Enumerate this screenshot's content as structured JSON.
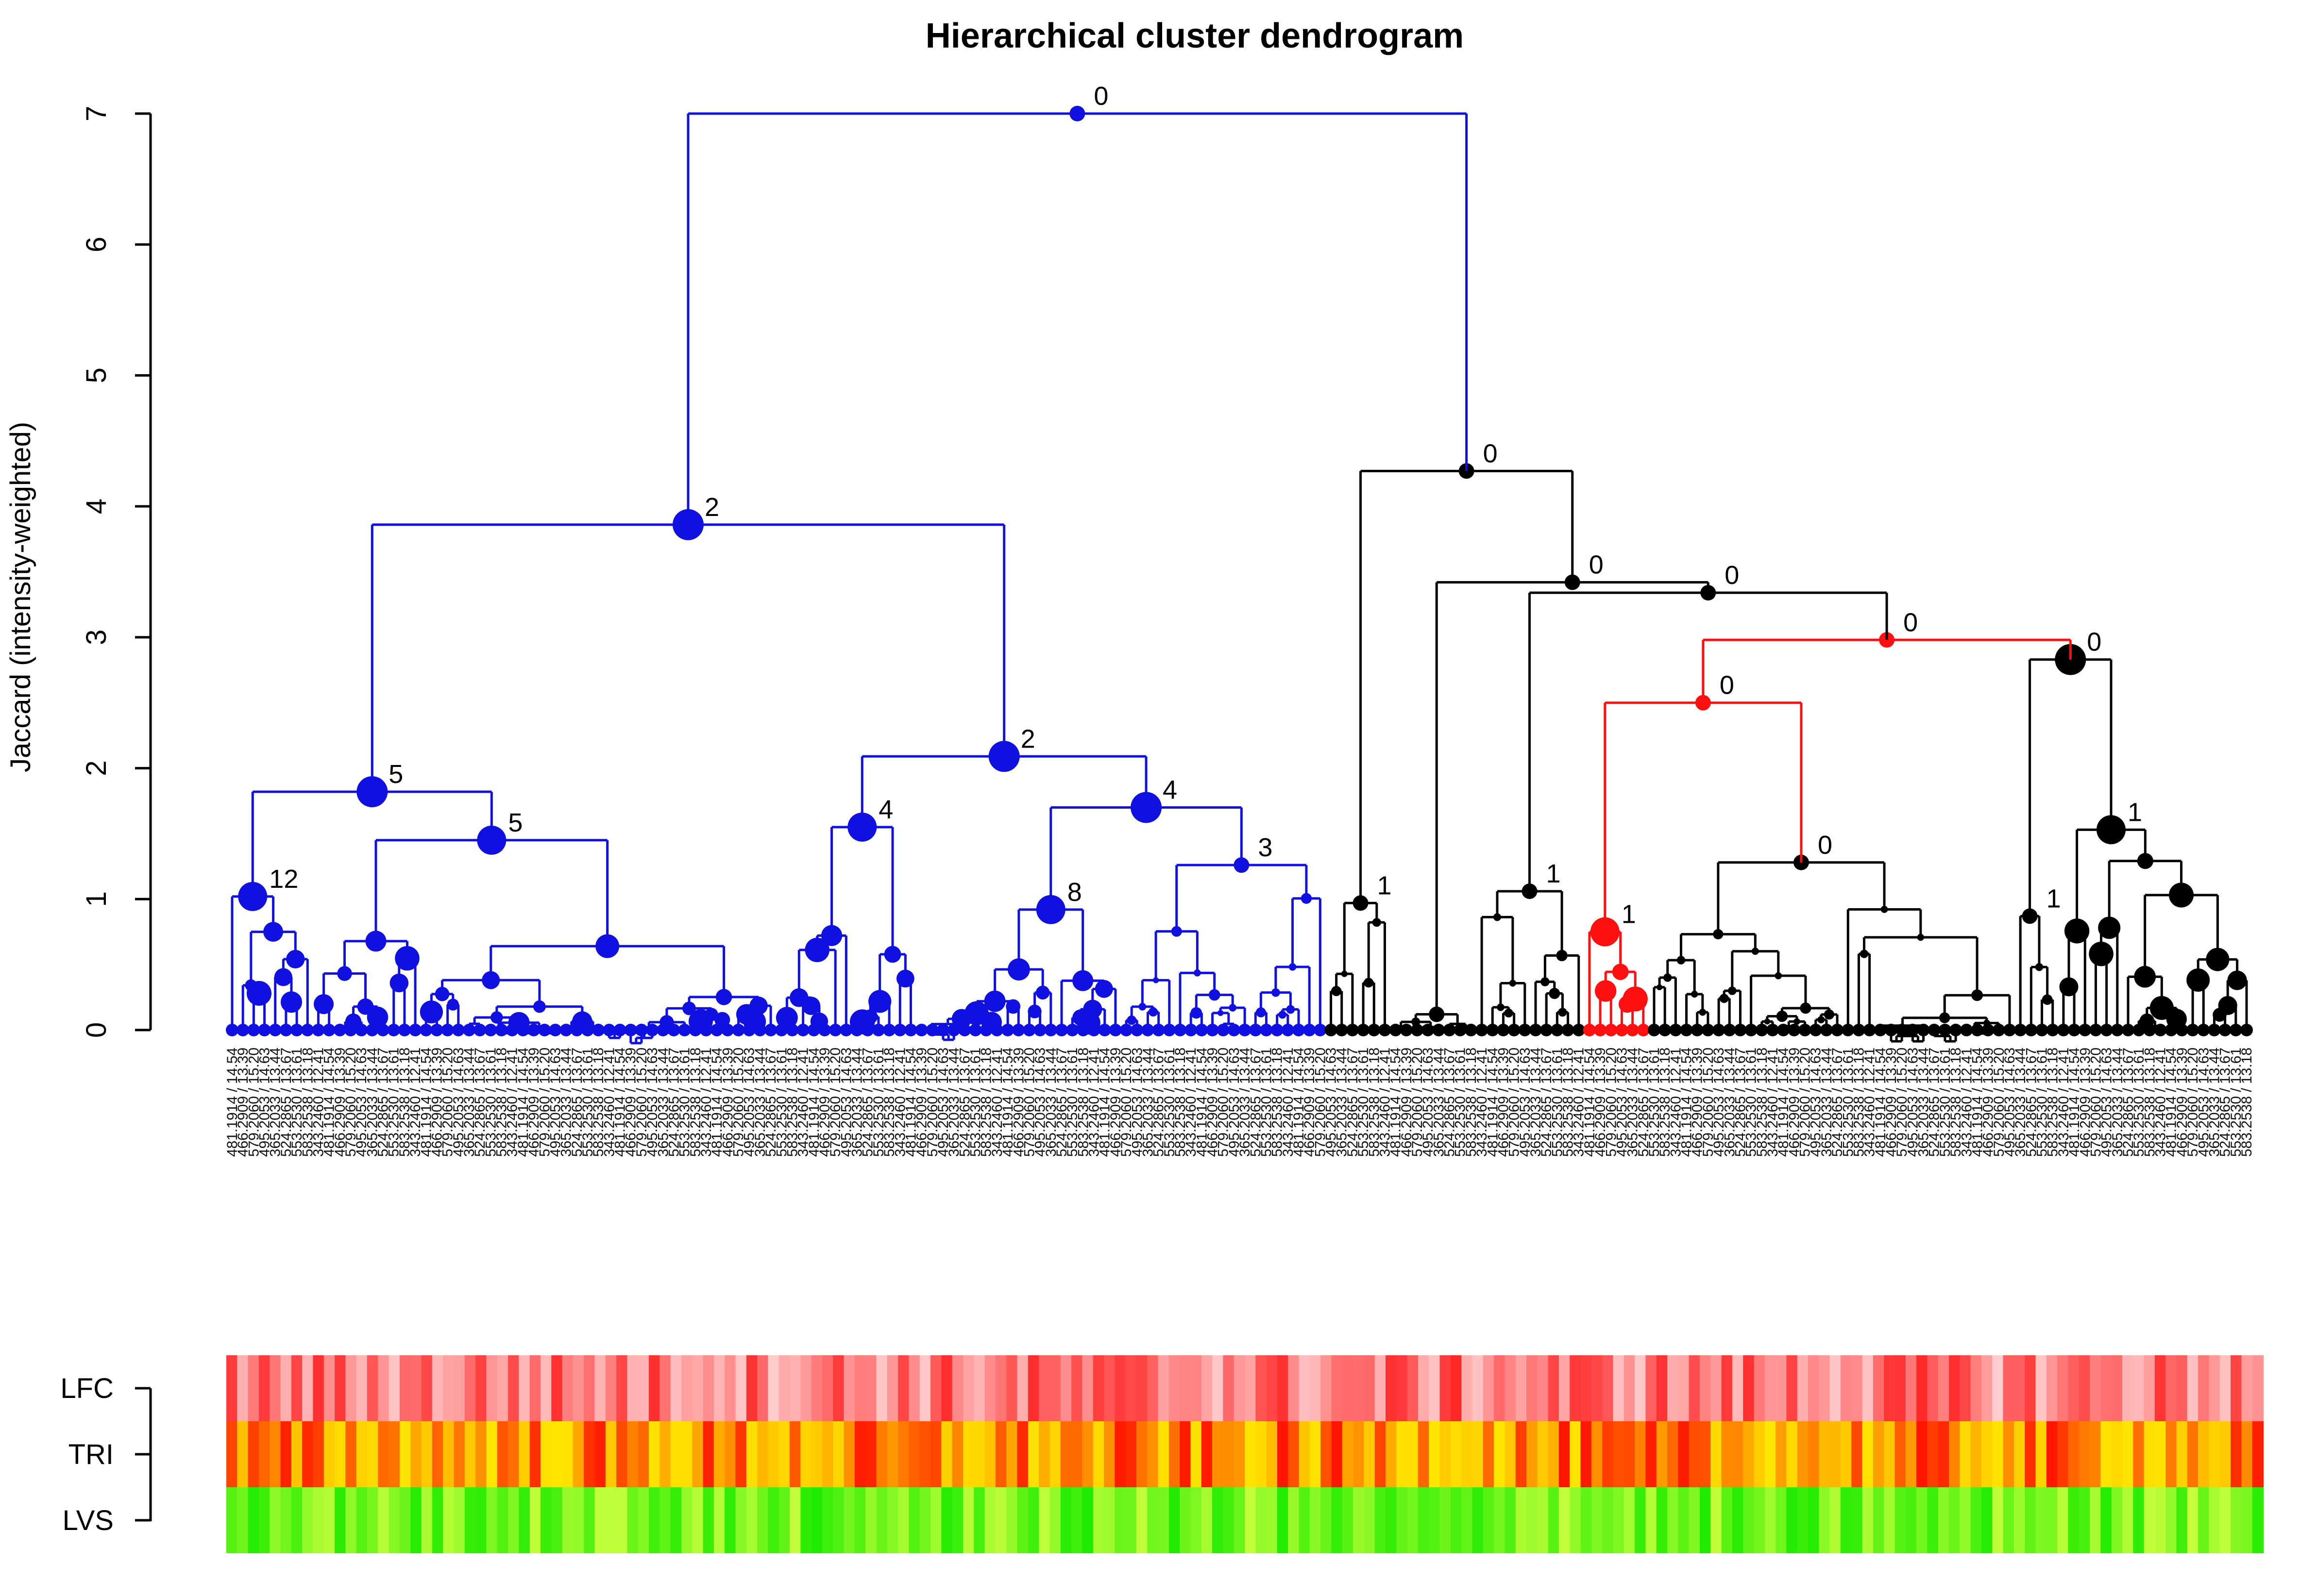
{
  "chart_data": {
    "type": "dendrogram",
    "title": "Hierarchical cluster dendrogram",
    "ylabel": "Jaccard (intensity-weighted)",
    "xlabel": "",
    "ylim": [
      0,
      7
    ],
    "yticks": [
      0,
      1,
      2,
      3,
      4,
      5,
      6,
      7
    ],
    "grid": false,
    "colors": {
      "blue_cluster": "#1010e0",
      "black_cluster": "#000000",
      "red_cluster": "#ff1010"
    },
    "n_leaves": 188,
    "cluster_ranges": [
      {
        "color": "#1010e0",
        "first_leaf": 0,
        "last_leaf": 101
      },
      {
        "color": "#000000",
        "first_leaf": 102,
        "last_leaf": 125
      },
      {
        "color": "#ff1010",
        "first_leaf": 126,
        "last_leaf": 131
      },
      {
        "color": "#000000",
        "first_leaf": 132,
        "last_leaf": 187
      }
    ],
    "major_nodes": [
      {
        "id": "root",
        "height": 7.0,
        "left": "A",
        "right": "B",
        "label": "0",
        "size": "small"
      },
      {
        "id": "A",
        "height": 3.86,
        "left": "A1",
        "right": "A2",
        "label": "2",
        "size": "large"
      },
      {
        "id": "A1",
        "height": 1.82,
        "left": "A1a",
        "right": "A1b",
        "label": "5",
        "size": "large"
      },
      {
        "id": "A1a",
        "height": 1.02,
        "first_leaf": 0,
        "last_leaf": 7,
        "label": "12",
        "size": "large"
      },
      {
        "id": "A1b",
        "height": 1.45,
        "first_leaf": 8,
        "last_leaf": 50,
        "label": "5",
        "size": "large"
      },
      {
        "id": "A2",
        "height": 2.09,
        "left": "A2a",
        "right": "A2b",
        "label": "2",
        "size": "large"
      },
      {
        "id": "A2a",
        "height": 1.55,
        "first_leaf": 51,
        "last_leaf": 63,
        "label": "4",
        "size": "large"
      },
      {
        "id": "A2b",
        "height": 1.7,
        "left": "A2b1",
        "right": "A2b2",
        "label": "4",
        "size": "large"
      },
      {
        "id": "A2b1",
        "height": 0.92,
        "first_leaf": 64,
        "last_leaf": 82,
        "label": "8",
        "size": "large"
      },
      {
        "id": "A2b2",
        "height": 1.26,
        "first_leaf": 83,
        "last_leaf": 101,
        "label": "3",
        "size": "small"
      },
      {
        "id": "B",
        "height": 4.27,
        "left": "B1",
        "right": "B2",
        "label": "0",
        "size": "small"
      },
      {
        "id": "B1",
        "height": 0.97,
        "first_leaf": 102,
        "last_leaf": 107,
        "label": "1",
        "size": "small"
      },
      {
        "id": "B2",
        "height": 3.42,
        "left": "B2a",
        "right": "B3",
        "label": "0",
        "size": "small"
      },
      {
        "id": "B2a",
        "height": 0.12,
        "first_leaf": 108,
        "last_leaf": 115,
        "label": "",
        "size": "small"
      },
      {
        "id": "B3",
        "height": 3.34,
        "left": "B3a",
        "right": "B4",
        "label": "0",
        "size": "small"
      },
      {
        "id": "B3a",
        "height": 1.06,
        "first_leaf": 116,
        "last_leaf": 125,
        "label": "1",
        "size": "small"
      },
      {
        "id": "B4",
        "height": 2.98,
        "left": "B5",
        "right": "B6",
        "label": "0",
        "size": "small"
      },
      {
        "id": "B5",
        "height": 2.5,
        "left": "B5a",
        "right": "B5b",
        "label": "0",
        "size": "small"
      },
      {
        "id": "B5a",
        "height": 0.75,
        "first_leaf": 126,
        "last_leaf": 131,
        "label": "1",
        "size": "large",
        "color": "#ff1010"
      },
      {
        "id": "B5b",
        "height": 1.28,
        "first_leaf": 132,
        "last_leaf": 165,
        "label": "0",
        "size": "small"
      },
      {
        "id": "B6",
        "height": 2.83,
        "left": "B6a",
        "right": "B6b",
        "label": "0",
        "size": "large"
      },
      {
        "id": "B6a",
        "height": 0.87,
        "first_leaf": 166,
        "last_leaf": 169,
        "label": "1",
        "size": "small"
      },
      {
        "id": "B6b",
        "height": 1.53,
        "first_leaf": 170,
        "last_leaf": 187,
        "label": "1",
        "size": "large"
      }
    ],
    "annotation_rows": [
      {
        "name": "LFC",
        "palette": "red"
      },
      {
        "name": "TRI",
        "palette": "yellow-red"
      },
      {
        "name": "LVS",
        "palette": "green"
      }
    ],
    "leaf_labels_sample": [
      "481.1914 / 14.54",
      "466.2909 / 13.39",
      "579.2060 / 15.20",
      "495.2053 / 14.63",
      "365.2033 / 13.44",
      "524.2865 / 13.67",
      "553.2530 / 13.61",
      "583.2538 / 13.18",
      "343.2460 / 12.41"
    ]
  }
}
